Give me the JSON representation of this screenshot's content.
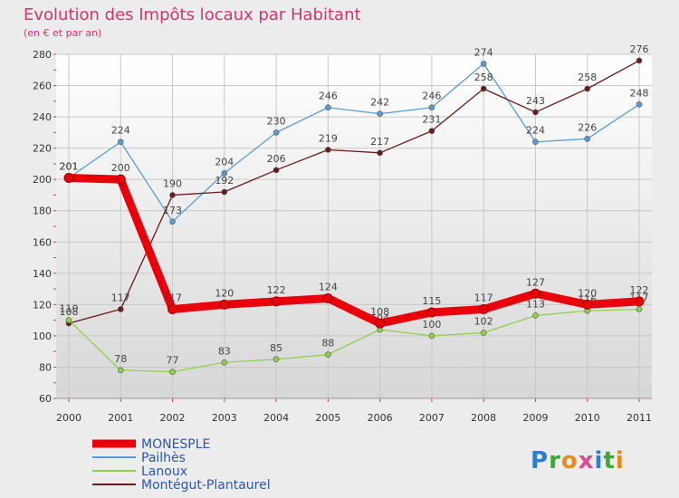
{
  "chart_data": {
    "type": "line",
    "title": "Evolution des Impôts locaux par Habitant",
    "subtitle": "(en € et par an)",
    "xlabel": "",
    "ylabel": "",
    "x": [
      "2000",
      "2001",
      "2002",
      "2003",
      "2004",
      "2005",
      "2006",
      "2007",
      "2008",
      "2009",
      "2010",
      "2011"
    ],
    "ylim": [
      60,
      280
    ],
    "yticks": [
      60,
      80,
      100,
      120,
      140,
      160,
      180,
      200,
      220,
      240,
      260,
      280
    ],
    "grid": true,
    "legend_position": "bottom-left",
    "series": [
      {
        "name": "MONESPLE",
        "color": "#e8000b",
        "values": [
          201,
          200,
          117,
          120,
          122,
          124,
          108,
          115,
          117,
          127,
          120,
          122
        ]
      },
      {
        "name": "Pailhès",
        "color": "#5b9bd5",
        "values": [
          201,
          224,
          173,
          204,
          230,
          246,
          242,
          246,
          274,
          224,
          226,
          248
        ]
      },
      {
        "name": "Lanoux",
        "color": "#8fd14f",
        "values": [
          110,
          78,
          77,
          83,
          85,
          88,
          104,
          100,
          102,
          113,
          116,
          117
        ]
      },
      {
        "name": "Montégut-Plantaurel",
        "color": "#6b1a1a",
        "values": [
          108,
          117,
          190,
          192,
          206,
          219,
          217,
          231,
          258,
          243,
          258,
          276
        ]
      }
    ]
  },
  "logo": {
    "text": "Proxiti"
  }
}
